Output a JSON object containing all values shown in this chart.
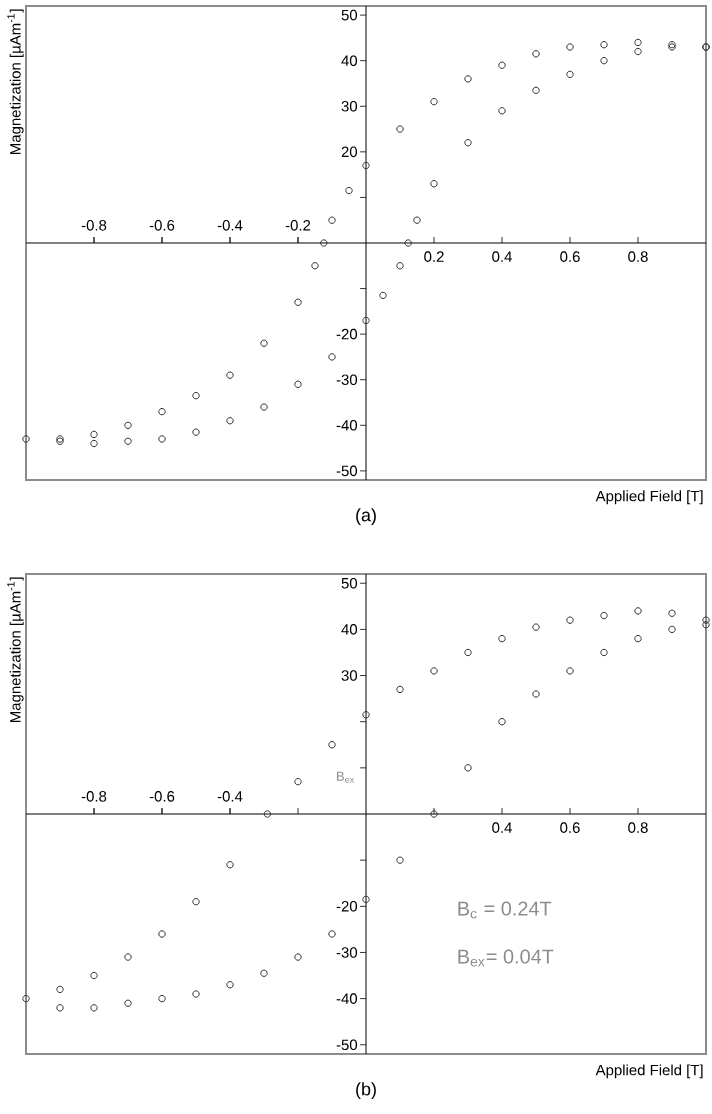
{
  "chart_data": [
    {
      "type": "scatter",
      "title": "(a)",
      "xlabel": "Applied Field [T]",
      "ylabel": "Magnetization [µAm$^{-1}$]",
      "marker": "circle",
      "xlim": [
        -1,
        1
      ],
      "ylim": [
        -52,
        52
      ],
      "x2lim": [
        -1,
        1
      ],
      "xticks": [
        {
          "value": -0.8,
          "label": null
        },
        {
          "value": -0.6,
          "label": null
        },
        {
          "value": -0.4,
          "label": null
        },
        {
          "value": -0.2,
          "label": null
        },
        0.2,
        0.4,
        0.6,
        0.8
      ],
      "x2ticks": [
        -0.8,
        -0.6,
        -0.4,
        -0.2
      ],
      "yticks": [
        -50,
        -40,
        -30,
        -20,
        {
          "value": -10,
          "label": null
        },
        {
          "value": 10,
          "label": null
        },
        20,
        30,
        40,
        50
      ],
      "series": [
        {
          "color": "#333333",
          "x": [
            1,
            0.9,
            0.8,
            0.7,
            0.6,
            0.5,
            0.4,
            0.3,
            0.2,
            0.1,
            0,
            -0.05,
            -0.1,
            -0.124,
            -0.15,
            -0.2,
            -0.3,
            -0.4,
            -0.5,
            -0.6,
            -0.7,
            -0.8,
            -0.9,
            -1,
            -0.9,
            -0.8,
            -0.7,
            -0.6,
            -0.5,
            -0.4,
            -0.3,
            -0.2,
            -0.1,
            0,
            0.05,
            0.1,
            0.124,
            0.15,
            0.2,
            0.3,
            0.4,
            0.5,
            0.6,
            0.7,
            0.8,
            0.9,
            1
          ],
          "values": [
            43,
            43.5,
            44,
            43.5,
            43,
            41.5,
            39,
            36,
            31,
            25,
            17,
            11.5,
            5,
            0,
            -5,
            -13,
            -22,
            -29,
            -33.5,
            -37,
            -40,
            -42,
            -43,
            -43,
            -43.5,
            -44,
            -43.5,
            -43,
            -41.5,
            -39,
            -36,
            -31,
            -25,
            -17,
            -11.5,
            -5,
            0,
            5,
            13,
            22,
            29,
            33.5,
            37,
            40,
            42,
            43,
            43
          ]
        }
      ]
    },
    {
      "type": "scatter",
      "title": "(b)",
      "xlabel": "Applied Field [T]",
      "ylabel": "Magnetization [µAm$^{-1}$]",
      "marker": "circle",
      "xlim": [
        -1,
        1
      ],
      "ylim": [
        -52,
        52
      ],
      "x2lim": [
        -1,
        1
      ],
      "xticks": [
        {
          "value": -0.8,
          "label": null
        },
        {
          "value": -0.6,
          "label": null
        },
        {
          "value": -0.4,
          "label": null
        },
        {
          "value": -0.2,
          "label": null
        },
        {
          "value": 0.2,
          "label": null
        },
        0.4,
        0.6,
        0.8
      ],
      "x2ticks": [
        -0.8,
        -0.6,
        -0.4
      ],
      "yticks": [
        -50,
        -40,
        -30,
        -20,
        {
          "value": -10,
          "label": null
        },
        {
          "value": 10,
          "label": null
        },
        {
          "value": 20,
          "label": null
        },
        30,
        40,
        50
      ],
      "annotations": [
        "B$_{ex}$",
        "B$_{c}$ = 0.24T",
        "B$_{ex}$= 0.04T"
      ],
      "series": [
        {
          "color": "#333333",
          "x": [
            1,
            0.9,
            0.8,
            0.7,
            0.6,
            0.5,
            0.4,
            0.3,
            0.2,
            0.1,
            0,
            -0.1,
            -0.2,
            -0.29,
            -0.4,
            -0.5,
            -0.6,
            -0.7,
            -0.8,
            -0.9,
            -1,
            -0.9,
            -0.8,
            -0.7,
            -0.6,
            -0.5,
            -0.4,
            -0.3,
            -0.2,
            -0.1,
            0,
            0.1,
            0.2,
            0.3,
            0.4,
            0.5,
            0.6,
            0.7,
            0.8,
            0.9,
            1
          ],
          "values": [
            42,
            43.5,
            44,
            43,
            42,
            40.5,
            38,
            35,
            31,
            27,
            21.5,
            15,
            7,
            0,
            -11,
            -19,
            -26,
            -31,
            -35,
            -38,
            -40,
            -42,
            -42,
            -41,
            -40,
            -39,
            -37,
            -34.5,
            -31,
            -26,
            -18.5,
            -10,
            0,
            10,
            20,
            26,
            31,
            35,
            38,
            40,
            41
          ]
        }
      ]
    }
  ]
}
